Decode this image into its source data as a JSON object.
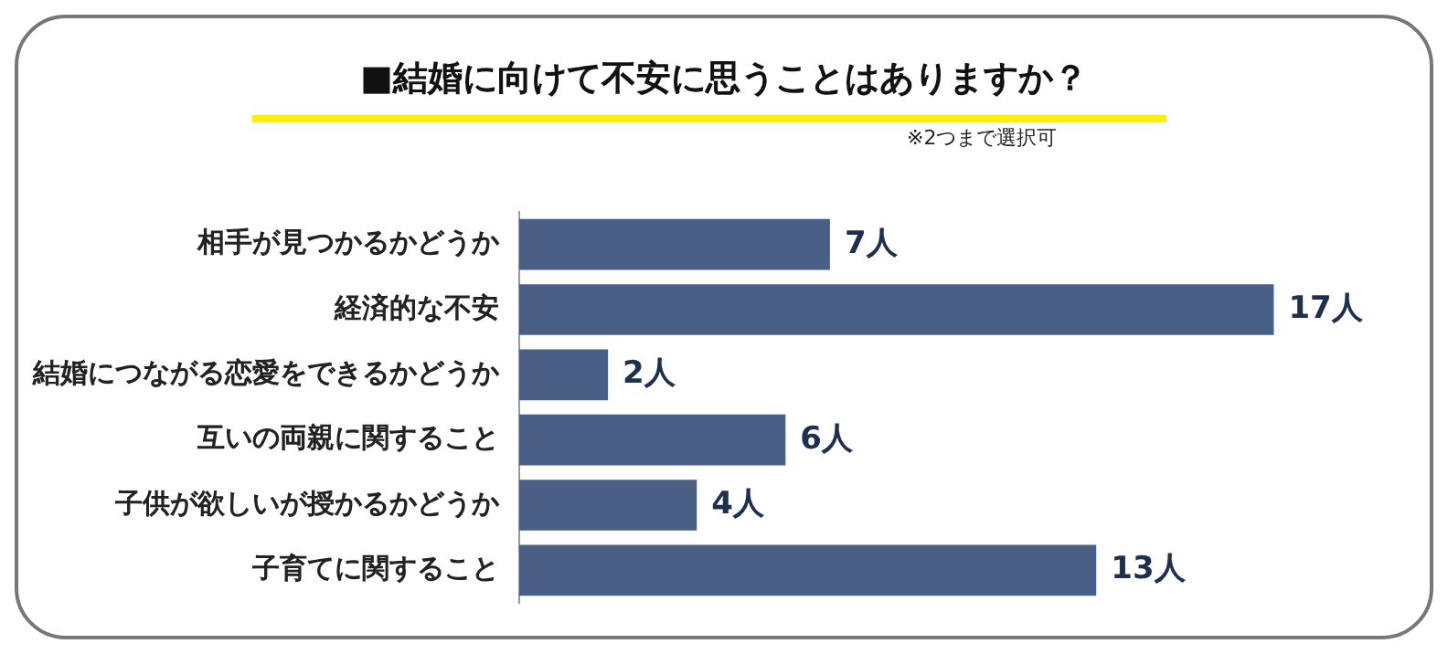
{
  "chart_data": {
    "type": "bar",
    "orientation": "horizontal",
    "title": "■結婚に向けて不安に思うことはありますか？",
    "subtitle": "※2つまで選択可",
    "categories": [
      "相手が見つかるかどうか",
      "経済的な不安",
      "結婚につながる恋愛をできるかどうか",
      "互いの両親に関すること",
      "子供が欲しいが授かるかどうか",
      "子育てに関すること"
    ],
    "values": [
      7,
      17,
      2,
      6,
      4,
      13
    ],
    "value_labels": [
      "7人",
      "17人",
      "2人",
      "6人",
      "4人",
      "13人"
    ],
    "color": "#4a5f85"
  }
}
